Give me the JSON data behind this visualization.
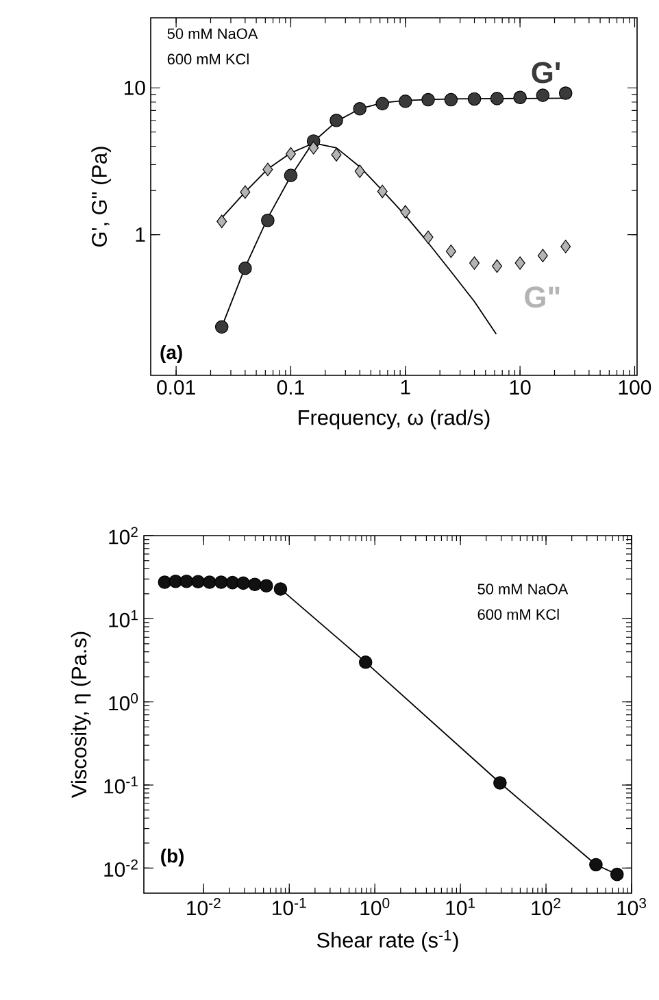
{
  "chart_data": [
    {
      "type": "scatter",
      "xlabel": "Frequency, ω (rad/s)",
      "ylabel": "G', G\" (Pa)",
      "log": "xy",
      "xlim": [
        0.006,
        105
      ],
      "ylim": [
        0.11,
        30
      ],
      "xticks": [
        0.01,
        0.1,
        1,
        10,
        100
      ],
      "yticks": [
        1,
        10
      ],
      "annotations": [
        "50 mM NaOA",
        "600 mM KCl",
        "(a)"
      ],
      "series": [
        {
          "name": "G'",
          "marker": "circle",
          "color": "#3a3a3a",
          "x": [
            0.025,
            0.04,
            0.063,
            0.1,
            0.158,
            0.25,
            0.4,
            0.63,
            1,
            1.58,
            2.5,
            4,
            6.3,
            10,
            15.8,
            25
          ],
          "values": [
            0.235,
            0.59,
            1.25,
            2.53,
            4.34,
            6.0,
            7.2,
            7.8,
            8.1,
            8.3,
            8.3,
            8.4,
            8.45,
            8.6,
            8.9,
            9.2
          ]
        },
        {
          "name": "G\"",
          "marker": "diamond",
          "color": "#b4b4b4",
          "x": [
            0.025,
            0.04,
            0.063,
            0.1,
            0.158,
            0.25,
            0.4,
            0.63,
            1,
            1.58,
            2.5,
            4,
            6.3,
            10,
            15.8,
            25
          ],
          "values": [
            1.23,
            1.95,
            2.78,
            3.55,
            3.9,
            3.5,
            2.7,
            1.97,
            1.43,
            0.96,
            0.77,
            0.64,
            0.61,
            0.64,
            0.72,
            0.83
          ]
        },
        {
          "type": "line",
          "color": "#000000",
          "x": [
            0.025,
            0.04,
            0.063,
            0.1,
            0.158,
            0.25,
            0.4,
            0.63,
            1,
            2.5,
            25
          ],
          "values": [
            0.235,
            0.6,
            1.3,
            2.5,
            4.3,
            5.9,
            7.2,
            7.9,
            8.2,
            8.4,
            8.5
          ]
        },
        {
          "type": "line",
          "color": "#000000",
          "x": [
            0.025,
            0.04,
            0.063,
            0.1,
            0.158,
            0.25,
            0.4,
            0.63,
            1,
            1.58,
            2.5,
            4,
            6.2
          ],
          "values": [
            1.3,
            1.95,
            2.8,
            3.6,
            4.2,
            3.9,
            2.9,
            2.0,
            1.35,
            0.88,
            0.56,
            0.35,
            0.21
          ]
        }
      ]
    },
    {
      "type": "scatter",
      "xlabel": "Shear rate (s$^{-1}$)",
      "ylabel": "Viscosity, η (Pa.s)",
      "log": "xy",
      "xlim": [
        0.002,
        1000
      ],
      "ylim": [
        0.005,
        100
      ],
      "xticks": [
        {
          "value": 0.01,
          "label": "10$^{-2}$"
        },
        {
          "value": 0.1,
          "label": "10$^{-1}$"
        },
        {
          "value": 1,
          "label": "10$^{0}$"
        },
        {
          "value": 10,
          "label": "10$^{1}$"
        },
        {
          "value": 100,
          "label": "10$^{2}$"
        },
        {
          "value": 1000,
          "label": "10$^{3}$"
        }
      ],
      "yticks": [
        {
          "value": 0.01,
          "label": "10$^{-2}$"
        },
        {
          "value": 0.1,
          "label": "10$^{-1}$"
        },
        {
          "value": 1,
          "label": "10$^{0}$"
        },
        {
          "value": 10,
          "label": "10$^{1}$"
        },
        {
          "value": 100,
          "label": "10$^{2}$"
        }
      ],
      "annotations": [
        "50 mM NaOA",
        "600 mM KCl",
        "(b)"
      ],
      "series": [
        {
          "type": "line",
          "color": "#000000",
          "x": [
            0.079,
            0.78,
            29,
            383,
            676
          ],
          "values": [
            22.8,
            3.0,
            0.106,
            0.011,
            0.0084
          ]
        },
        {
          "marker": "circle",
          "color": "#111111",
          "x": [
            0.0035,
            0.0047,
            0.0063,
            0.0086,
            0.0117,
            0.016,
            0.0217,
            0.029,
            0.0396,
            0.054,
            0.079,
            0.78,
            29,
            383,
            676
          ],
          "values": [
            27.5,
            28.2,
            28.2,
            27.9,
            27.5,
            27.5,
            27.2,
            26.8,
            25.9,
            24.9,
            22.8,
            3.0,
            0.106,
            0.011,
            0.0084
          ]
        }
      ]
    }
  ]
}
